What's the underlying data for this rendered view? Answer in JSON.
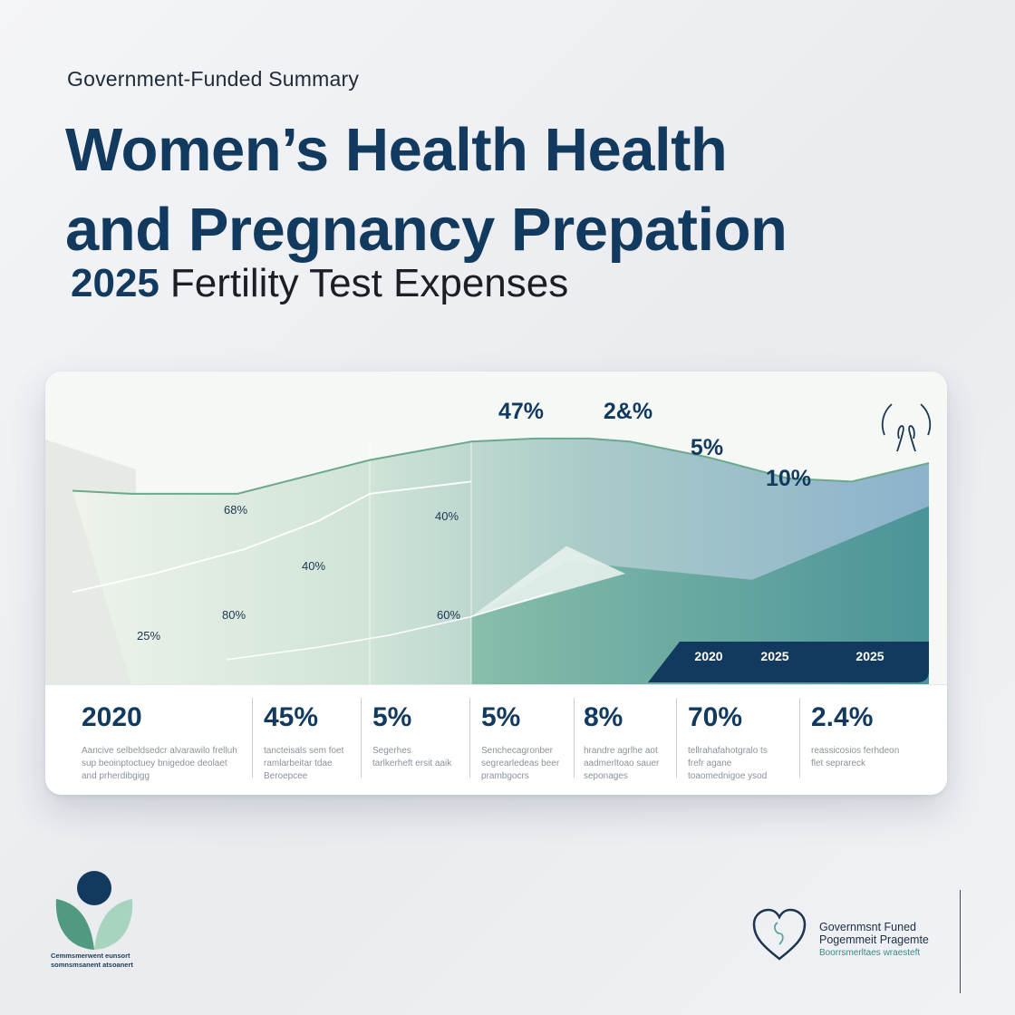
{
  "header": {
    "eyebrow": "Government-Funded Summary",
    "title_line1": "Women’s Health Health",
    "title_line2": "and Pregnancy Prepation",
    "subtitle_year": "2025",
    "subtitle_text": "Fertility Test Expenses"
  },
  "colors": {
    "navy": "#123a5f",
    "teal": "#4f9a86",
    "blue": "#8fb3cf",
    "line": "#6aa98d"
  },
  "chart_data": {
    "type": "area",
    "title": "",
    "xlabel": "",
    "ylabel": "",
    "grid": false,
    "legend": "none",
    "year_labels": [
      "2020",
      "2025",
      "2025"
    ],
    "top_labels": [
      "47%",
      "2&%",
      "5%",
      "10%"
    ],
    "series": [
      {
        "values": [
          63,
          62,
          62,
          73,
          79,
          80,
          80,
          79,
          74,
          67,
          66,
          72
        ]
      },
      {
        "values": [
          30,
          36,
          44,
          53,
          62,
          66
        ]
      },
      {
        "values": [
          8,
          12,
          16,
          22,
          30
        ]
      }
    ],
    "point_labels": [
      {
        "text": "68%"
      },
      {
        "text": "40%"
      },
      {
        "text": "80%"
      },
      {
        "text": "25%"
      },
      {
        "text": "40%"
      },
      {
        "text": "60%"
      }
    ]
  },
  "stats": [
    {
      "value": "2020",
      "desc": "Aancive selbeldsedcr alvarawilo frelluh sup beoinptoctuey bnigedoe deolaet and prherdibgigg"
    },
    {
      "value": "45%",
      "desc": "tancteisals sem foet ramlarbeitar tdae Beroepcee"
    },
    {
      "value": "5%",
      "desc": "Segerhes tarlkerheft ersit aaik"
    },
    {
      "value": "5%",
      "desc": "Senchecagronber segrearledeas beer prambgocrs"
    },
    {
      "value": "8%",
      "desc": "hrandre agrlhe aot aadmerltoao sauer seponages"
    },
    {
      "value": "70%",
      "desc": "tellrahafahotgralo ts frefr agane toaomednigoe ysod"
    },
    {
      "value": "2.4%",
      "desc": "reassicosios ferhdeon flet seprareck"
    }
  ],
  "footer": {
    "left_caption_1": "Cemmsmerwent eunsort",
    "left_caption_2": "somnsmsanent atsoanert",
    "right_line1": "Governmsnt Funed",
    "right_line2": "Pogemmeit Pragemte",
    "right_line3": "Boorrsmerltaes wraesteft"
  }
}
